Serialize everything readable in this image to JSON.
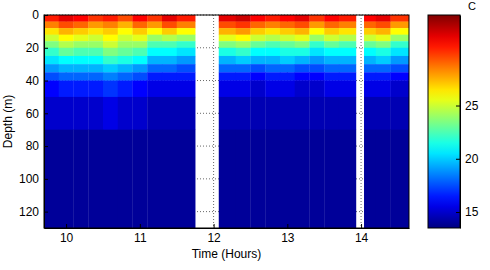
{
  "chart_data": {
    "type": "heatmap",
    "x_label": "Time (Hours)",
    "y_label": "Depth (m)",
    "x": [
      9.7,
      9.9,
      10.1,
      10.3,
      10.5,
      10.7,
      10.9,
      11.1,
      11.3,
      11.5,
      11.75,
      12.07,
      12.3,
      12.5,
      12.7,
      12.9,
      13.1,
      13.3,
      13.5,
      13.7,
      13.93,
      14.04,
      14.2,
      14.4,
      14.65
    ],
    "y": [
      0,
      4,
      8,
      12,
      16,
      20,
      25,
      30,
      35,
      40,
      50,
      70,
      130
    ],
    "values": [
      [
        30.5,
        31.5,
        31,
        30,
        30.5,
        29.5,
        31,
        30,
        31.5,
        30.5,
        null,
        31.5,
        32,
        31,
        30.5,
        31,
        31.5,
        30,
        31,
        30.5,
        null,
        31,
        31.5,
        30
      ],
      [
        28.5,
        29.5,
        29,
        28,
        28.5,
        27.5,
        29,
        28,
        29.5,
        28.5,
        null,
        29.5,
        30,
        29,
        28.5,
        29,
        29.5,
        28,
        29,
        28.5,
        null,
        29,
        29.5,
        28
      ],
      [
        26.5,
        27.5,
        27,
        26.5,
        27,
        26,
        27,
        26,
        27,
        26,
        null,
        27.5,
        28,
        27,
        26.5,
        27,
        27.5,
        26,
        27,
        26.5,
        null,
        27,
        27.5,
        26
      ],
      [
        25,
        26,
        25.5,
        25,
        26,
        25,
        25.5,
        24,
        24.5,
        24,
        null,
        25.5,
        26,
        25,
        24.5,
        25,
        25.5,
        24,
        25,
        24.5,
        null,
        25,
        25.5,
        24
      ],
      [
        23.5,
        24.5,
        24,
        24,
        25,
        24,
        24,
        22.5,
        22.5,
        22,
        null,
        23.5,
        24,
        23,
        22.5,
        23,
        23.5,
        22,
        23,
        22.5,
        null,
        23,
        23.5,
        22
      ],
      [
        22,
        23,
        22.5,
        22.5,
        23.5,
        23,
        22.5,
        21,
        21,
        20.5,
        null,
        21.5,
        22,
        21,
        21,
        21.5,
        21.5,
        20.5,
        21,
        21,
        null,
        21,
        21.5,
        20.5
      ],
      [
        20.5,
        21,
        21,
        21,
        22,
        21.5,
        21,
        19.5,
        19.5,
        19,
        null,
        19.5,
        20,
        19.5,
        19.5,
        20,
        19.5,
        19,
        19.5,
        19.5,
        null,
        19.5,
        20,
        19
      ],
      [
        19,
        19.5,
        19.5,
        19.5,
        20,
        19.5,
        19,
        18,
        18,
        17.5,
        null,
        18,
        18,
        17.5,
        18,
        18,
        17.5,
        17.5,
        18,
        18,
        null,
        18,
        18,
        17.5
      ],
      [
        17.5,
        18,
        18,
        18,
        18.5,
        18,
        17.5,
        16.5,
        16.5,
        16.5,
        null,
        16.5,
        16.5,
        16,
        16.5,
        16.5,
        16,
        16,
        16.5,
        16.5,
        null,
        16.5,
        16.5,
        16
      ],
      [
        16,
        16.5,
        16.5,
        16.5,
        17,
        16.5,
        16,
        15.5,
        15.5,
        15.5,
        null,
        15.5,
        15.5,
        15,
        15.5,
        15.5,
        15,
        15,
        15.5,
        15.5,
        null,
        15.5,
        15.5,
        15
      ],
      [
        15,
        15,
        15,
        15,
        15.5,
        15,
        15,
        14.5,
        14.5,
        14.5,
        null,
        14.5,
        14.5,
        14.5,
        14.5,
        14.5,
        14.5,
        14.5,
        14.5,
        14.5,
        null,
        14.5,
        14.5,
        14.5
      ],
      [
        14,
        14,
        14,
        14,
        14,
        14,
        14,
        14,
        14,
        14,
        null,
        14,
        14,
        14,
        14,
        14,
        14,
        14,
        14,
        14,
        null,
        14,
        14,
        14
      ]
    ],
    "xlim": [
      9.7,
      14.65
    ],
    "ylim": [
      0,
      130
    ],
    "xticks": [
      10,
      11,
      12,
      13,
      14
    ],
    "yticks": [
      0,
      20,
      40,
      60,
      80,
      100,
      120
    ],
    "grid": true,
    "color": "jet",
    "colorbar": {
      "range": [
        13.5,
        33.5
      ],
      "ticks": [
        15,
        20,
        25
      ],
      "label": "C"
    }
  }
}
